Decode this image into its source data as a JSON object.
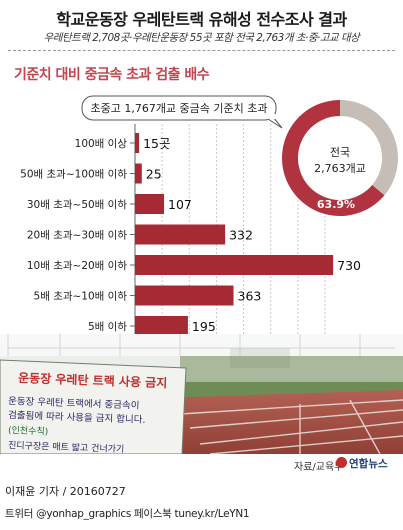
{
  "title": "학교운동장 우레탄트랙 유해성 전수조사 결과",
  "subtitle": "우레탄트랙 2,708곳·우레탄운동장 55곳 포함 전국 2,763개 초·중·고교 대상",
  "section_title": "기준치 대비 중금속 초과 검출 배수",
  "callout": "초중고 1,767개교 중금속 기준치 초과",
  "donut": {
    "center_line1": "전국",
    "center_line2": "2,763개교",
    "percent_label": "63.9%",
    "value": 63.9,
    "fill_color": "#b0333f",
    "rest_color": "#c6beb6"
  },
  "photo_sign": {
    "title": "운동장 우레탄 트랙 사용 금지",
    "line1": "운동장 우레탄 트랙에서 중금속이",
    "line2": "검출됨에 따라 사용을 금지 합니다.",
    "line3": "(인천수칙)",
    "line4": "진디구장은 매트 밟고 건너가기"
  },
  "source": "자료/교육부",
  "logo": "연합뉴스",
  "byline": "이재윤 기자 / 20160727",
  "sns": "트위터 @yonhap_graphics  페이스북 tuney.kr/LeYN1",
  "colors": {
    "bar": "#a52a33",
    "accent": "#c0464f"
  },
  "chart_data": {
    "type": "bar",
    "orientation": "horizontal",
    "categories": [
      "100배 이상",
      "50배 초과~100배 이하",
      "30배 초과~50배 이하",
      "20배 초과~30배 이하",
      "10배 초과~20배 이하",
      "5배 초과~10배 이하",
      "5배 이하"
    ],
    "values": [
      15,
      25,
      107,
      332,
      730,
      363,
      195
    ],
    "value_labels": [
      "15곳",
      "25",
      "107",
      "332",
      "730",
      "363",
      "195"
    ],
    "xlim": [
      0,
      700
    ],
    "ticks": [
      "0",
      "100",
      "200",
      "300",
      "400",
      "500",
      "600",
      "700"
    ],
    "grid": true
  }
}
